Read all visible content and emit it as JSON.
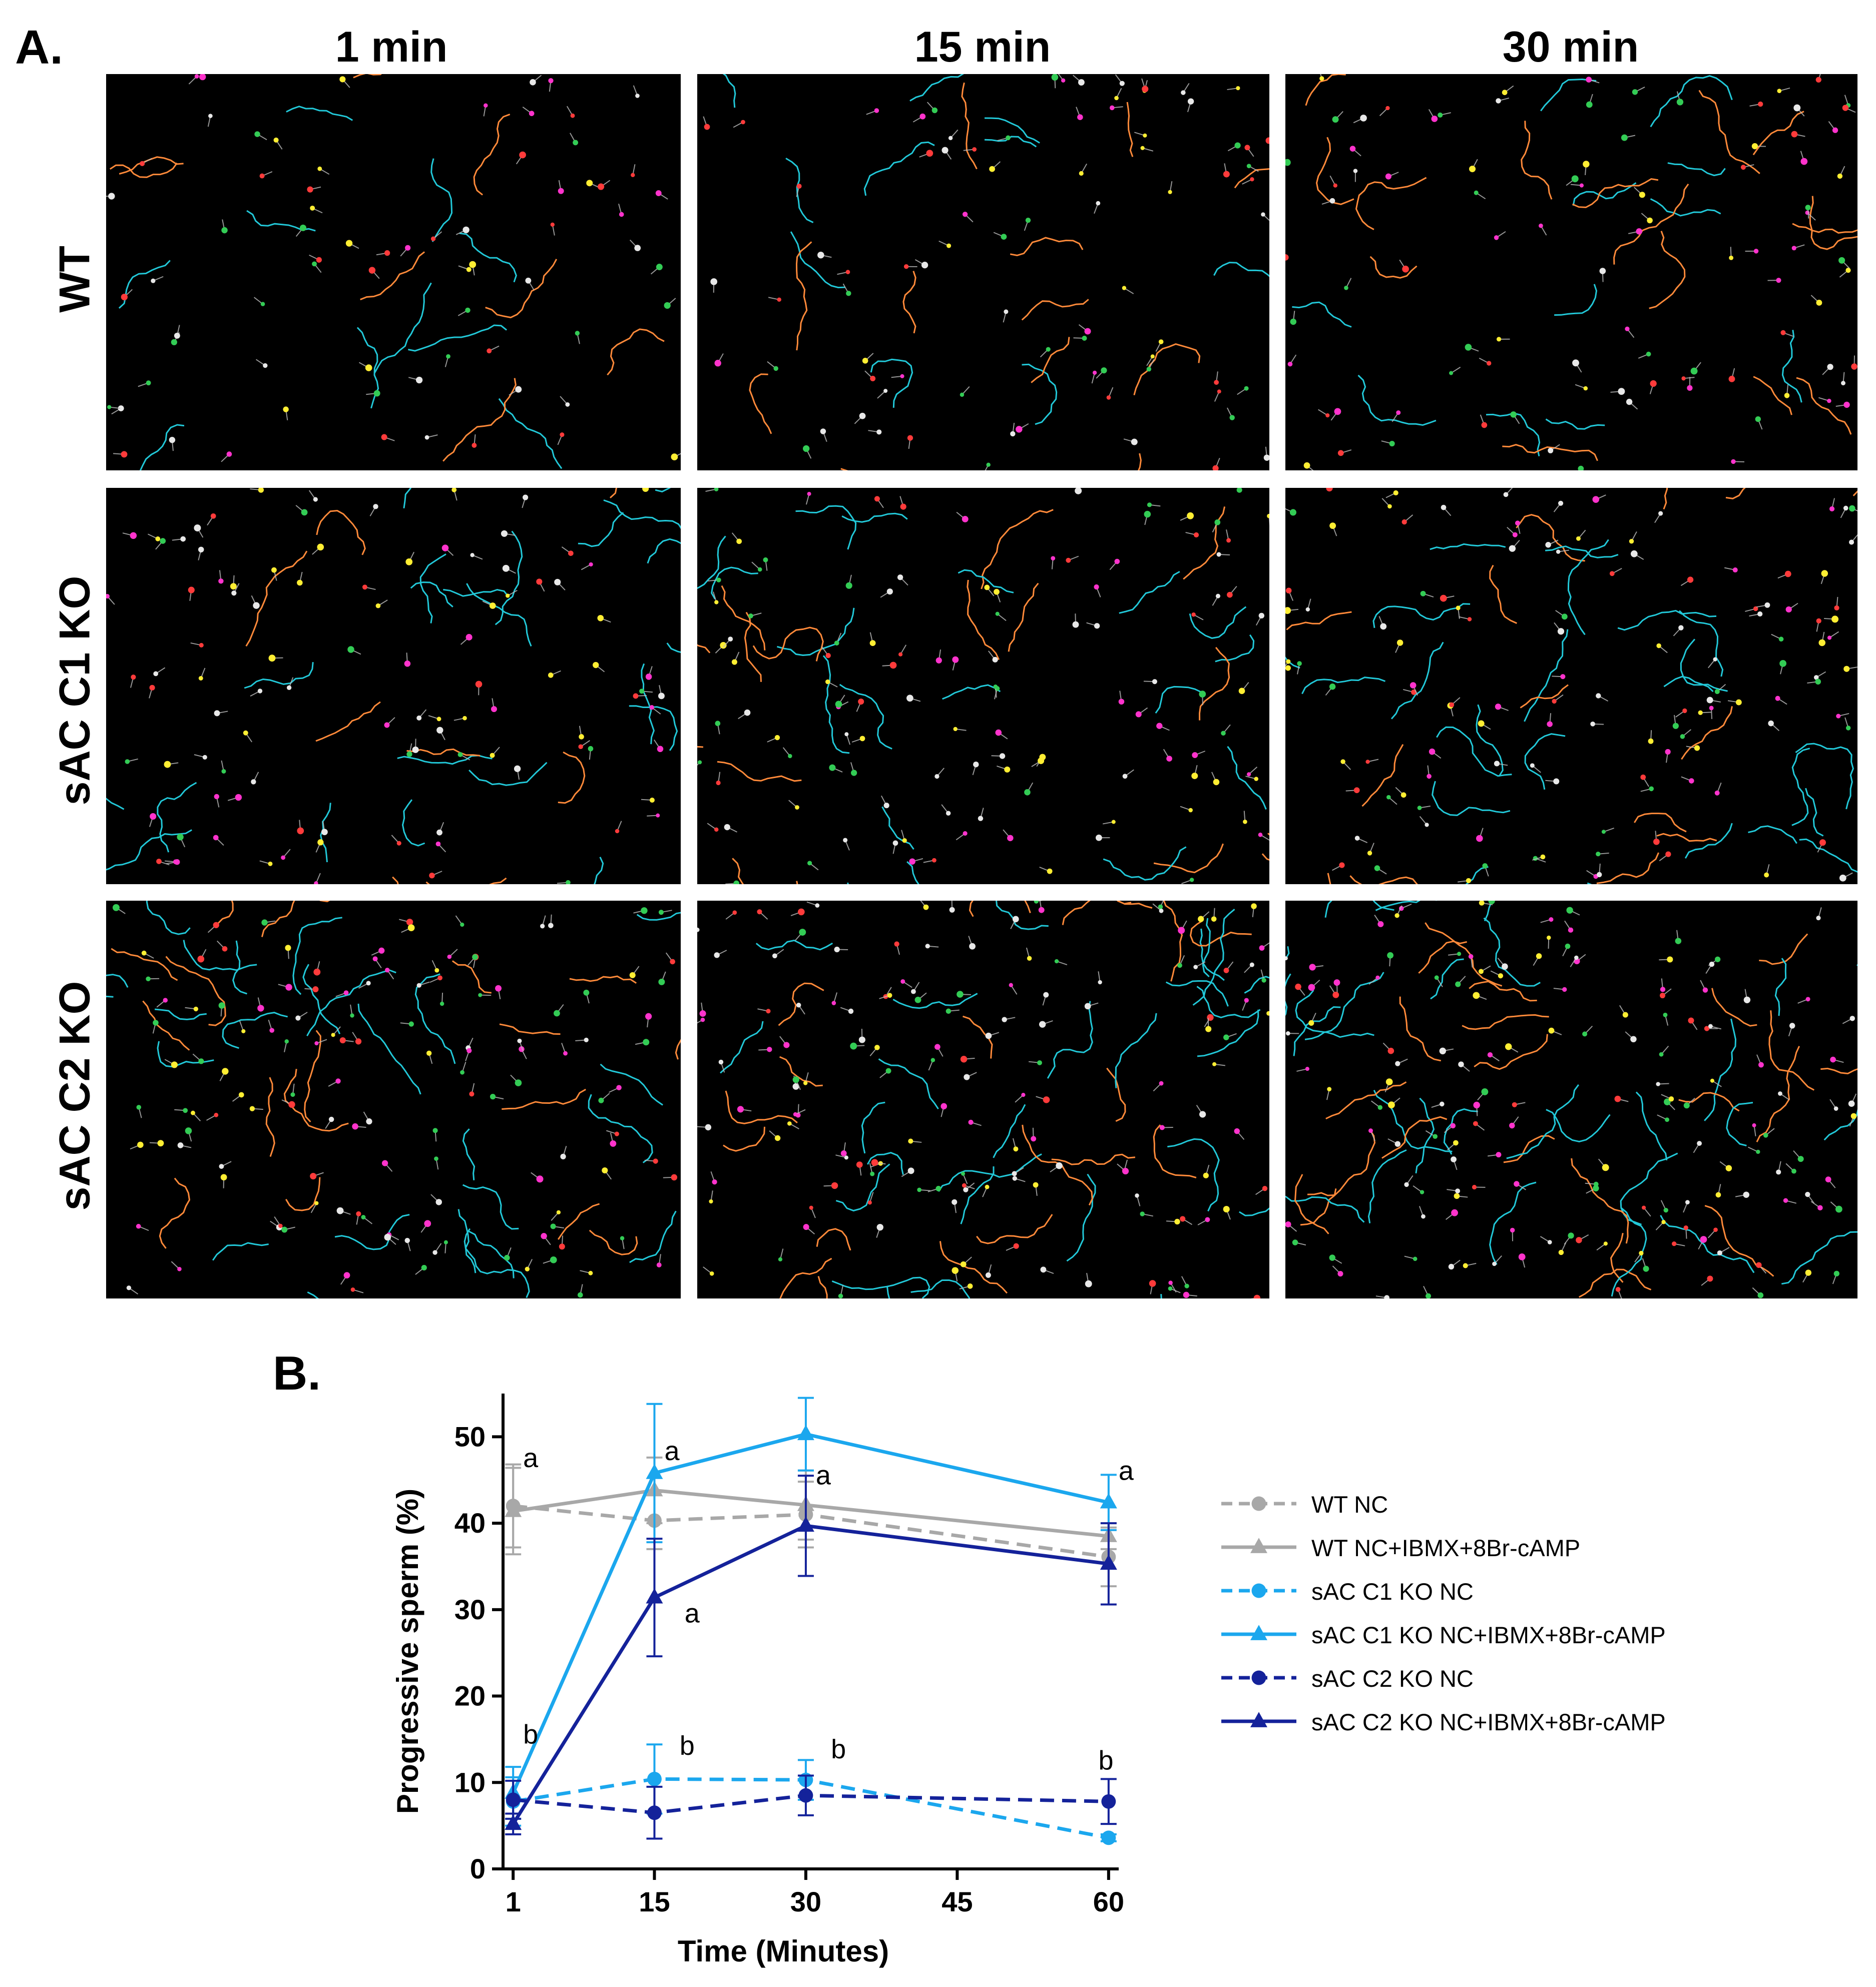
{
  "panel_a_letter": "A.",
  "panel_b_letter": "B.",
  "columns": [
    "1 min",
    "15 min",
    "30 min"
  ],
  "rows": [
    "WT",
    "sAC C1 KO",
    "sAC C2 KO"
  ],
  "track_colors": [
    "#22c8d8",
    "#ff8a3a",
    "#ffee33",
    "#ff33cc",
    "#33cc55",
    "#ff3b3b",
    "#e8e8e8"
  ],
  "chart_data": {
    "type": "line",
    "x": [
      1,
      15,
      30,
      60
    ],
    "xlabel": "Time (Minutes)",
    "ylabel": "Progressive sperm (%)",
    "xticks": [
      1,
      15,
      30,
      45,
      60
    ],
    "yticks": [
      0,
      10,
      20,
      30,
      40,
      50
    ],
    "xlim": [
      0,
      61
    ],
    "ylim": [
      0,
      55
    ],
    "series": [
      {
        "name": "WT NC",
        "values": [
          42.0,
          40.3,
          41.0,
          36.1
        ],
        "err": [
          4.8,
          3.3,
          3.8,
          3.4
        ],
        "color": "#a8a8a8",
        "marker": "circle",
        "dash": true
      },
      {
        "name": "WT NC+IBMX+8Br-cAMP",
        "values": [
          41.4,
          43.8,
          42.1,
          38.5
        ],
        "err": [
          5.0,
          3.8,
          4.0,
          1.5
        ],
        "color": "#a8a8a8",
        "marker": "triangle",
        "dash": false
      },
      {
        "name": "sAC C1 KO NC",
        "values": [
          7.8,
          10.4,
          10.3,
          3.6
        ],
        "err": [
          2.8,
          4.0,
          2.3,
          0.4
        ],
        "color": "#1ba7ee",
        "marker": "circle",
        "dash": true
      },
      {
        "name": "sAC C1 KO NC+IBMX+8Br-cAMP",
        "values": [
          8.8,
          45.8,
          50.3,
          42.4
        ],
        "err": [
          3.0,
          8.0,
          4.2,
          3.2
        ],
        "color": "#1ba7ee",
        "marker": "triangle",
        "dash": false
      },
      {
        "name": "sAC C2 KO NC",
        "values": [
          8.0,
          6.5,
          8.5,
          7.8
        ],
        "err": [
          2.2,
          3.0,
          2.3,
          2.6
        ],
        "color": "#14229a",
        "marker": "circle",
        "dash": true
      },
      {
        "name": "sAC C2 KO NC+IBMX+8Br-cAMP",
        "values": [
          5.2,
          31.4,
          39.7,
          35.3
        ],
        "err": [
          1.2,
          6.8,
          5.8,
          4.7
        ],
        "color": "#14229a",
        "marker": "triangle",
        "dash": false
      }
    ],
    "annotations": [
      {
        "text": "a",
        "x": 1,
        "y": 46.5
      },
      {
        "text": "a",
        "x": 15,
        "y": 47.3
      },
      {
        "text": "a",
        "x": 30,
        "y": 44.5
      },
      {
        "text": "a",
        "x": 60,
        "y": 45.0
      },
      {
        "text": "a",
        "x": 17,
        "y": 28.5
      },
      {
        "text": "b",
        "x": 1,
        "y": 14.5
      },
      {
        "text": "b",
        "x": 16.5,
        "y": 13.2
      },
      {
        "text": "b",
        "x": 31.5,
        "y": 12.8
      },
      {
        "text": "b",
        "x": 58,
        "y": 11.5
      }
    ],
    "legend_position": "right"
  }
}
